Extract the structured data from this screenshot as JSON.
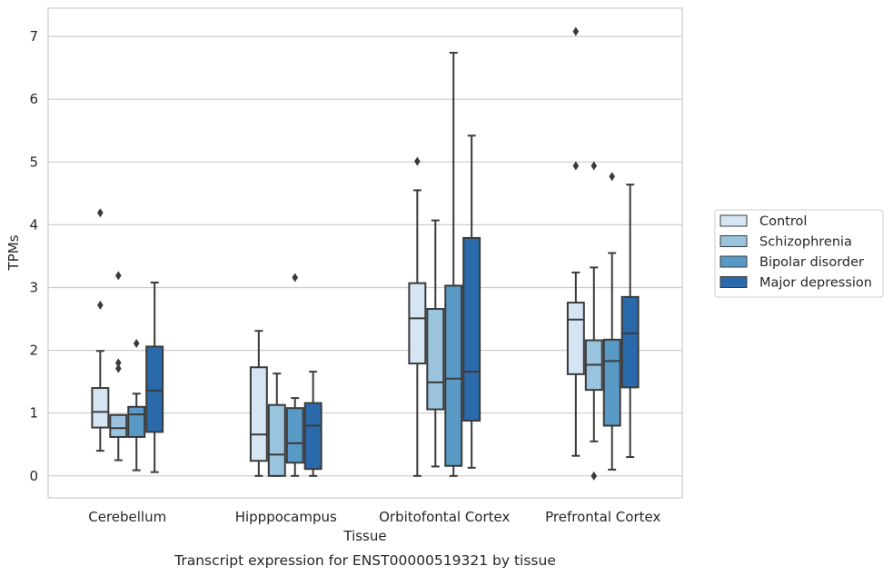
{
  "chart_data": {
    "type": "box",
    "title": "",
    "caption": "Transcript expression for ENST00000519321 by tissue",
    "xlabel": "Tissue",
    "ylabel": "TPMs",
    "ylim": [
      -0.35,
      7.45
    ],
    "yticks": [
      0,
      1,
      2,
      3,
      4,
      5,
      6,
      7
    ],
    "grid": true,
    "legend_position": "right",
    "categories": [
      "Cerebellum",
      "Hipppocampus",
      "Orbitofontal Cortex",
      "Prefrontal Cortex"
    ],
    "series": [
      {
        "name": "Control",
        "color": "#d6e5f3",
        "boxes": [
          {
            "whisker_low": 0.4,
            "q1": 0.77,
            "median": 1.02,
            "q3": 1.4,
            "whisker_high": 1.99,
            "outliers": [
              2.72,
              4.19
            ]
          },
          {
            "whisker_low": 0.0,
            "q1": 0.24,
            "median": 0.66,
            "q3": 1.73,
            "whisker_high": 2.31,
            "outliers": []
          },
          {
            "whisker_low": 0.0,
            "q1": 1.79,
            "median": 2.51,
            "q3": 3.07,
            "whisker_high": 4.55,
            "outliers": [
              5.01
            ]
          },
          {
            "whisker_low": 0.32,
            "q1": 1.62,
            "median": 2.49,
            "q3": 2.76,
            "whisker_high": 3.24,
            "outliers": [
              4.94,
              7.08
            ]
          }
        ]
      },
      {
        "name": "Schizophrenia",
        "color": "#9ac3de",
        "boxes": [
          {
            "whisker_low": 0.25,
            "q1": 0.62,
            "median": 0.76,
            "q3": 0.97,
            "whisker_high": 0.97,
            "outliers": [
              1.71,
              1.8,
              3.19
            ]
          },
          {
            "whisker_low": 0.0,
            "q1": 0.0,
            "median": 0.34,
            "q3": 1.13,
            "whisker_high": 1.63,
            "outliers": []
          },
          {
            "whisker_low": 0.15,
            "q1": 1.06,
            "median": 1.49,
            "q3": 2.66,
            "whisker_high": 4.07,
            "outliers": []
          },
          {
            "whisker_low": 0.55,
            "q1": 1.37,
            "median": 1.77,
            "q3": 2.16,
            "whisker_high": 3.32,
            "outliers": [
              0.0,
              4.94
            ]
          }
        ]
      },
      {
        "name": "Bipolar disorder",
        "color": "#5899c6",
        "boxes": [
          {
            "whisker_low": 0.09,
            "q1": 0.62,
            "median": 0.98,
            "q3": 1.1,
            "whisker_high": 1.31,
            "outliers": [
              2.11
            ]
          },
          {
            "whisker_low": 0.0,
            "q1": 0.21,
            "median": 0.52,
            "q3": 1.08,
            "whisker_high": 1.24,
            "outliers": [
              3.16
            ]
          },
          {
            "whisker_low": 0.0,
            "q1": 0.16,
            "median": 1.55,
            "q3": 3.03,
            "whisker_high": 6.74,
            "outliers": []
          },
          {
            "whisker_low": 0.1,
            "q1": 0.8,
            "median": 1.83,
            "q3": 2.17,
            "whisker_high": 3.55,
            "outliers": [
              4.77
            ]
          }
        ]
      },
      {
        "name": "Major depression",
        "color": "#2a6aab",
        "boxes": [
          {
            "whisker_low": 0.06,
            "q1": 0.7,
            "median": 1.36,
            "q3": 2.06,
            "whisker_high": 3.08,
            "outliers": []
          },
          {
            "whisker_low": 0.0,
            "q1": 0.11,
            "median": 0.8,
            "q3": 1.16,
            "whisker_high": 1.66,
            "outliers": []
          },
          {
            "whisker_low": 0.13,
            "q1": 0.88,
            "median": 1.66,
            "q3": 3.79,
            "whisker_high": 5.42,
            "outliers": []
          },
          {
            "whisker_low": 0.3,
            "q1": 1.41,
            "median": 2.27,
            "q3": 2.85,
            "whisker_high": 4.64,
            "outliers": []
          }
        ]
      }
    ]
  }
}
